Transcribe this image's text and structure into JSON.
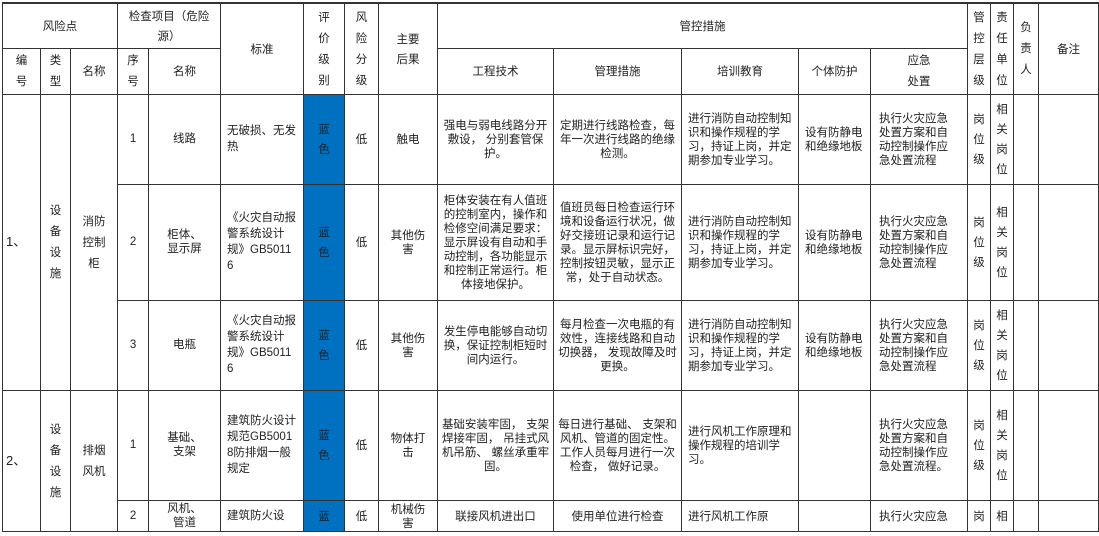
{
  "header": {
    "risk_point": "风险点",
    "check_item": "检查项目（危险源）",
    "standard": "标准",
    "evaluation": "评价级别",
    "risk_level": "风险分级",
    "consequence": "主要后果",
    "control_measures": "管控措施",
    "control_tier": "管控层级",
    "responsible_unit": "责任单位",
    "owner": "负责人",
    "remark": "备注",
    "no": "编号",
    "type": "类型",
    "name": "名称",
    "seq": "序号",
    "item_name": "名称",
    "engineering": "工程技术",
    "management": "管理措施",
    "training": "培训教育",
    "ppe": "个体防护",
    "emergency": "应急处置"
  },
  "colors": {
    "blue_level": "#0070c0"
  },
  "groups": [
    {
      "no": "1、",
      "type": "设备设施",
      "name": "消防控制柜",
      "items": [
        {
          "seq": "1",
          "name": "线路",
          "standard": "无破损、无发热",
          "eval": "蓝色",
          "level": "低",
          "consequence": "触电",
          "engineering": "强电与弱电线路分开敷设， 分别套管保护。",
          "management": "定期进行线路检查，每年一次进行线路的绝缘检测。",
          "training": "进行消防自动控制知识和操作规程的学习，持证上岗，并定期参加专业学习。",
          "ppe": "设有防静电和绝缘地板",
          "emergency": "执行火灾应急处置方案和自动控制操作应急处置流程",
          "tier": "岗位级",
          "unit": "相关岗位",
          "owner": "",
          "remark": ""
        },
        {
          "seq": "2",
          "name": "柜体、显示屏",
          "standard": "《火灾自动报警系统设计规》GB50116",
          "eval": "蓝色",
          "level": "低",
          "consequence": "其他伤害",
          "engineering": "柜体安装在有人值班的控制室内，操作和检修空间满足要求：显示屏设有自动和手动控制，各功能显示和控制正常运行。柜体接地保护。",
          "management": "值班员每日检查运行环境和设备运行状况，做好交接班记录和运行记录。显示屏标识完好， 控制按钮灵敏，显示正常，处于自动状态。",
          "training": "进行消防自动控制知识和操作规程的学习，持证上岗，并定期参加专业学习。",
          "ppe": "设有防静电和绝缘地板",
          "emergency": "执行火灾应急处置方案和自动控制操作应急处置流程",
          "tier": "岗位级",
          "unit": "相关岗位",
          "owner": "",
          "remark": ""
        },
        {
          "seq": "3",
          "name": "电瓶",
          "standard": "《火灾自动报警系统设计规》GB50116",
          "eval": "蓝色",
          "level": "低",
          "consequence": "其他伤害",
          "engineering": "发生停电能够自动切换，保证控制柜短时间内运行。",
          "management": "每月检查一次电瓶的有效性，连接线路和自动切换器， 发现故障及时更换。",
          "training": "进行消防自动控制知识和操作规程的学习，持证上岗，并定期参加专业学习。",
          "ppe": "设有防静电和绝缘地板",
          "emergency": "执行火灾应急处置方案和自动控制操作应急处置流程",
          "tier": "岗位级",
          "unit": "相关岗位",
          "owner": "",
          "remark": ""
        }
      ]
    },
    {
      "no": "2、",
      "type": "设备设施",
      "name": "排烟风机",
      "items": [
        {
          "seq": "1",
          "name": "基础、支架",
          "standard": "建筑防火设计规范GB50018防排烟一般规定",
          "eval": "蓝色",
          "level": "低",
          "consequence": "物体打击",
          "engineering": "基础安装牢固， 支架焊接牢固， 吊挂式风机吊筋、 螺丝承重牢固。",
          "management": "每日进行基础、 支架和风机、管道的固定性。工作人员每月进行一次检查， 做好记录。",
          "training": "进行风机工作原理和操作规程的培训学习。",
          "ppe": "",
          "emergency": "执行火灾应急处置方案和自动控制操作应急处置流程。",
          "tier": "岗位级",
          "unit": "相关岗位",
          "owner": "",
          "remark": ""
        },
        {
          "seq": "2",
          "name": "风机、管道",
          "standard": "建筑防火设",
          "eval": "蓝",
          "level": "低",
          "consequence": "机械伤害",
          "engineering": "联接风机进出口",
          "management": "使用单位进行检查",
          "training": "进行风机工作原",
          "ppe": "",
          "emergency": "执行火灾应急",
          "tier": "岗",
          "unit": "相",
          "owner": "",
          "remark": ""
        }
      ]
    }
  ]
}
